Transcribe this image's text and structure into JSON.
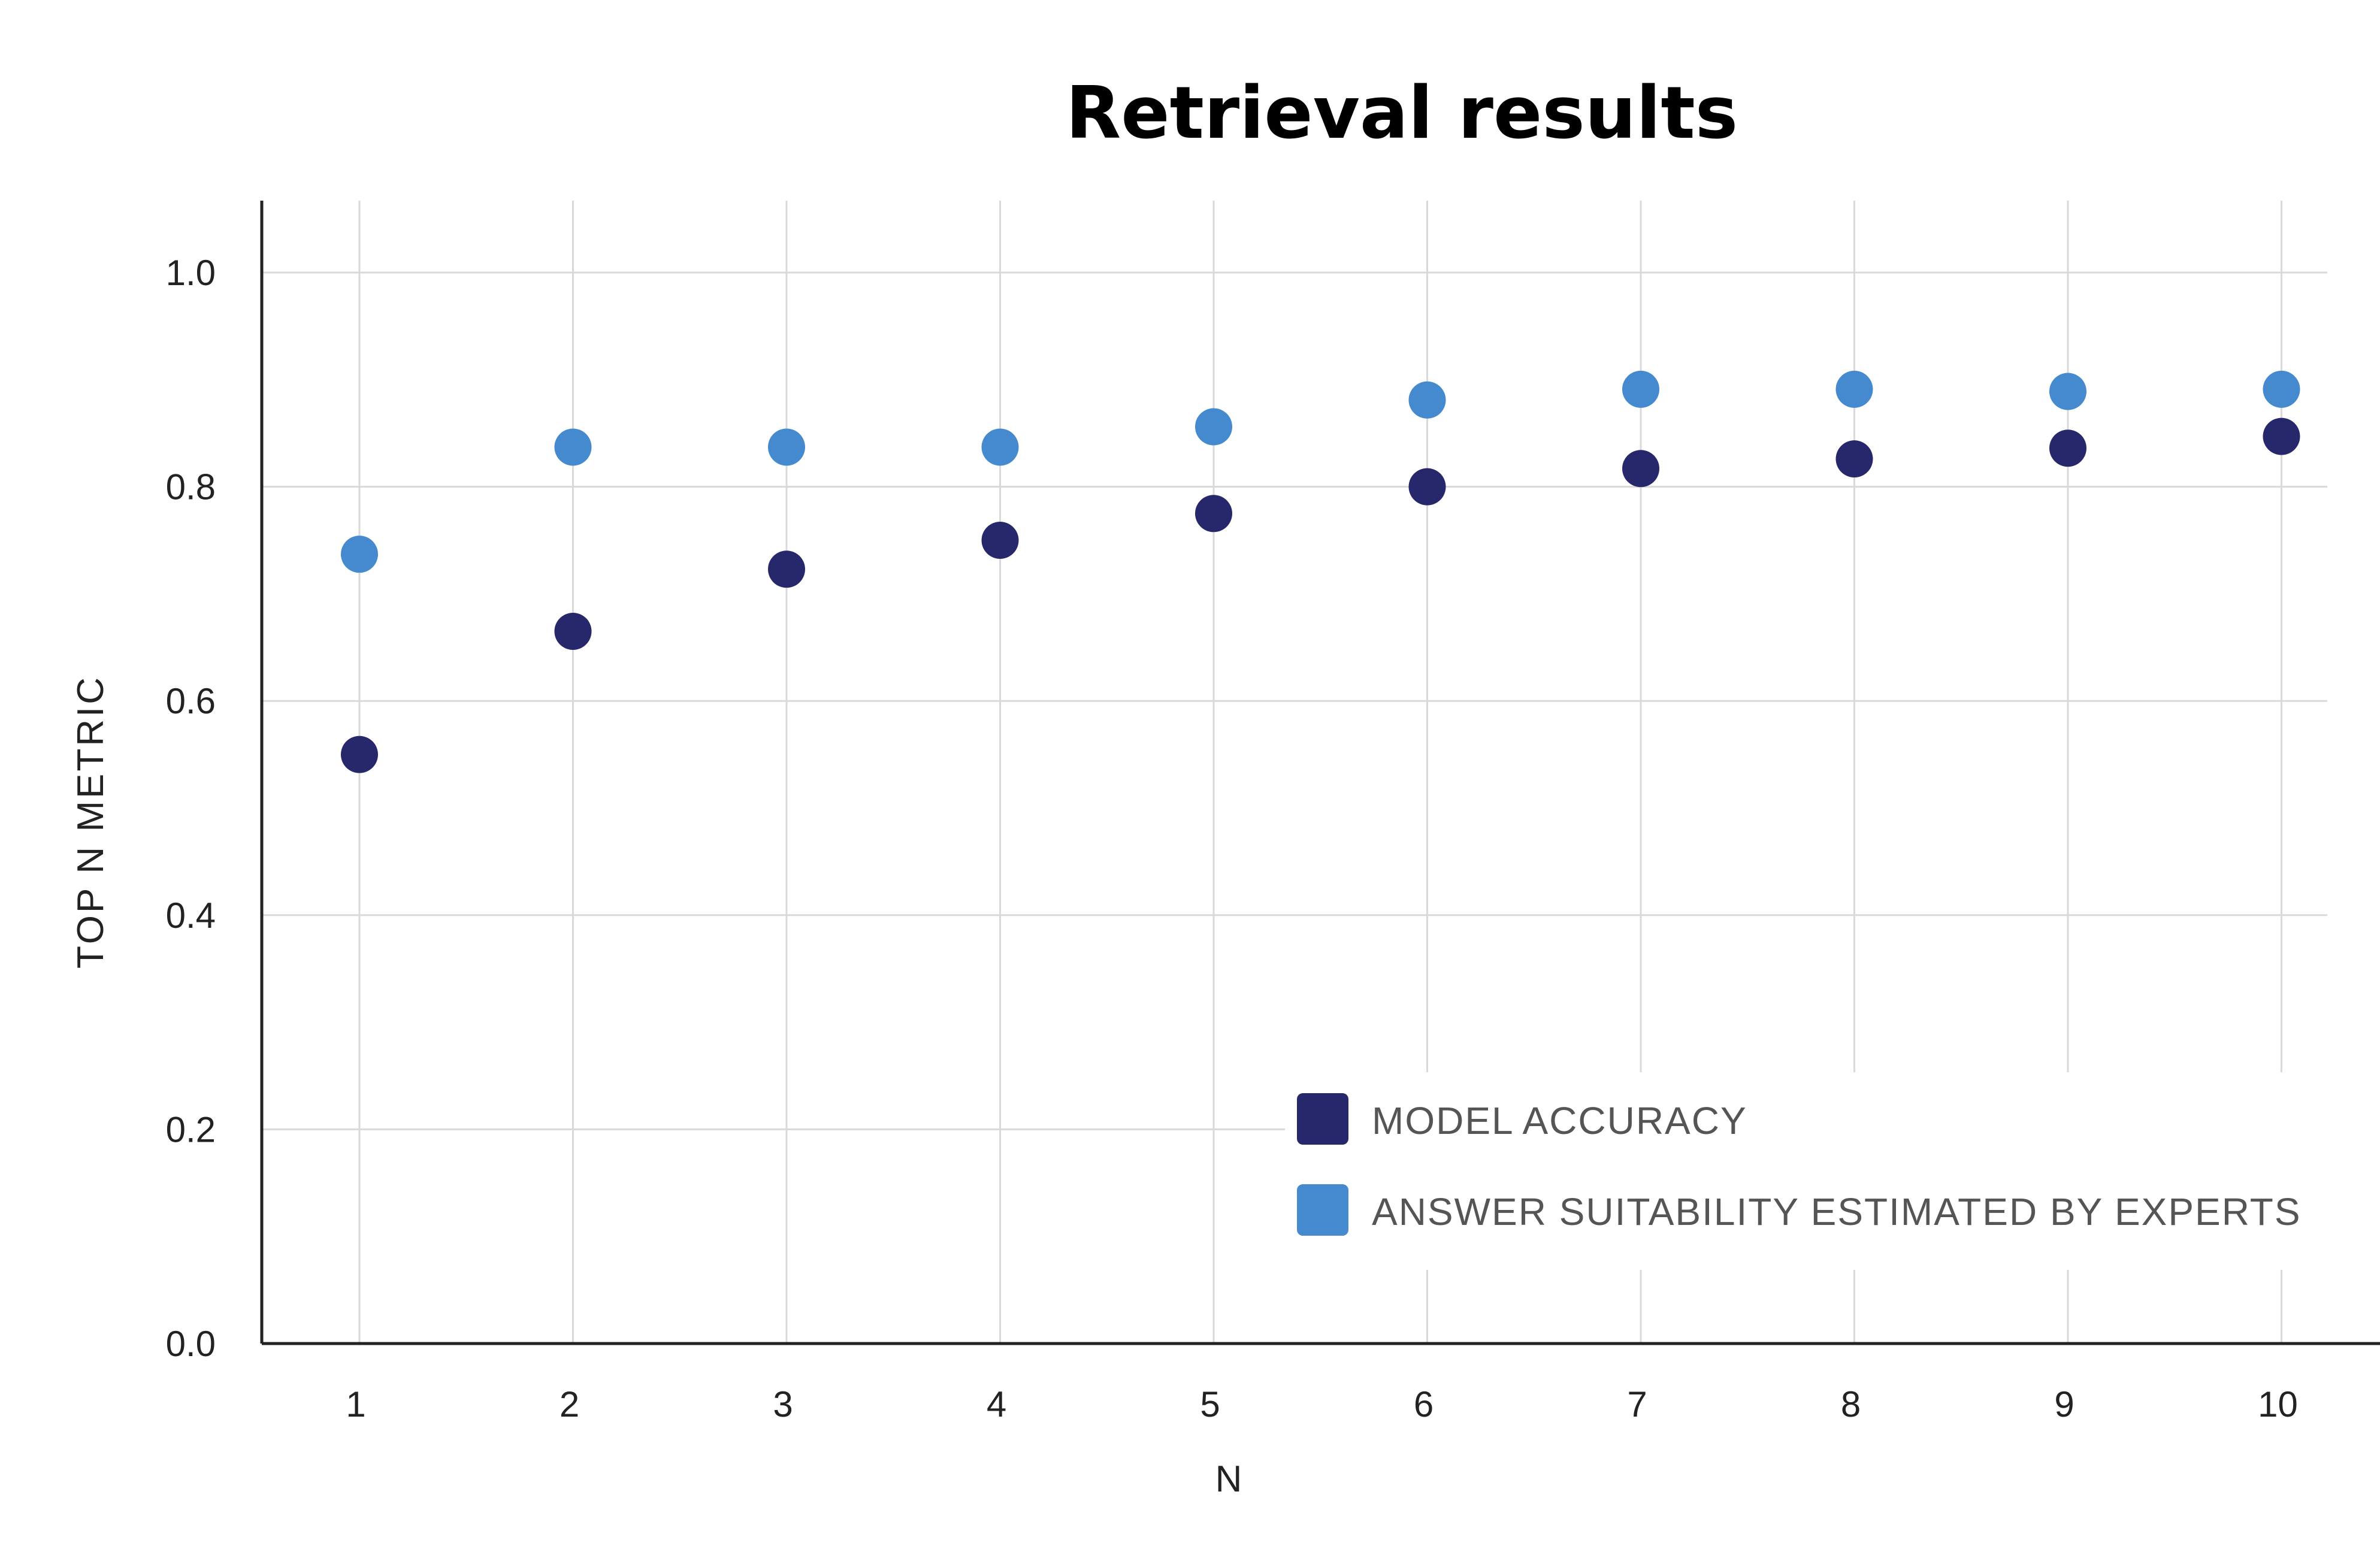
{
  "chart_data": {
    "type": "scatter",
    "title": "Retrieval results",
    "xlabel": "N",
    "ylabel": "TOP N METRIC",
    "x": [
      1,
      2,
      3,
      4,
      5,
      6,
      7,
      8,
      9,
      10
    ],
    "x_ticks": [
      "1",
      "2",
      "3",
      "4",
      "5",
      "6",
      "7",
      "8",
      "9",
      "10"
    ],
    "y_ticks": [
      "0.0",
      "0.2",
      "0.4",
      "0.6",
      "0.8",
      "1.0"
    ],
    "ylim": [
      0,
      1.05
    ],
    "grid": true,
    "legend_position": "bottom-right",
    "series": [
      {
        "name": "MODEL ACCURACY",
        "color": "#27276b",
        "values": [
          0.55,
          0.665,
          0.723,
          0.75,
          0.775,
          0.8,
          0.817,
          0.826,
          0.836,
          0.847
        ]
      },
      {
        "name": "ANSWER SUITABILITY ESTIMATED BY EXPERTS",
        "color": "#4589cf",
        "values": [
          0.737,
          0.837,
          0.837,
          0.837,
          0.856,
          0.881,
          0.891,
          0.891,
          0.889,
          0.891
        ]
      }
    ]
  }
}
